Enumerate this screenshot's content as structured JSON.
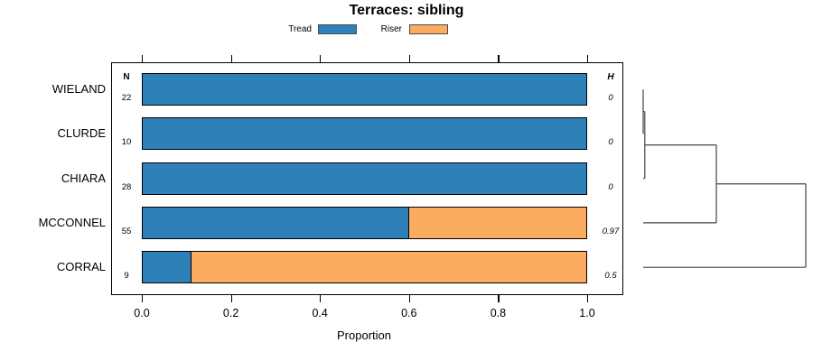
{
  "title": "Terraces: sibling",
  "columns": {
    "n": "N",
    "h": "H"
  },
  "legend": {
    "position": "top",
    "items": [
      {
        "label": "Tread",
        "color": "#2E81B8"
      },
      {
        "label": "Riser",
        "color": "#FBAC61"
      }
    ]
  },
  "chart_data": {
    "type": "bar",
    "orientation": "horizontal",
    "stacked": true,
    "title": "Terraces: sibling",
    "xlabel": "Proportion",
    "xlim": [
      0,
      1
    ],
    "xticks": [
      "0.0",
      "0.2",
      "0.4",
      "0.6",
      "0.8",
      "1.0"
    ],
    "xtick_values": [
      0,
      0.2,
      0.4,
      0.6,
      0.8,
      1.0
    ],
    "grid": false,
    "categories": [
      "WIELAND",
      "CLURDE",
      "CHIARA",
      "MCCONNEL",
      "CORRAL"
    ],
    "n_values": [
      22,
      10,
      28,
      55,
      9
    ],
    "h_values": [
      "0",
      "0",
      "0",
      "0.97",
      "0.5"
    ],
    "series": [
      {
        "name": "Tread",
        "color": "#2E81B8",
        "values": [
          1.0,
          1.0,
          1.0,
          0.6,
          0.111
        ]
      },
      {
        "name": "Riser",
        "color": "#FBAC61",
        "values": [
          0.0,
          0.0,
          0.0,
          0.4,
          0.889
        ]
      }
    ],
    "dendrogram": {
      "side": "right",
      "leaves": [
        "WIELAND",
        "CLURDE",
        "CHIARA",
        "MCCONNEL",
        "CORRAL"
      ],
      "merges": [
        {
          "a": 0,
          "b": 1,
          "height": 0.0
        },
        {
          "a": 5,
          "b": 2,
          "height": 0.01
        },
        {
          "a": 6,
          "b": 3,
          "height": 0.45
        },
        {
          "a": 7,
          "b": 4,
          "height": 1.0
        }
      ]
    }
  }
}
